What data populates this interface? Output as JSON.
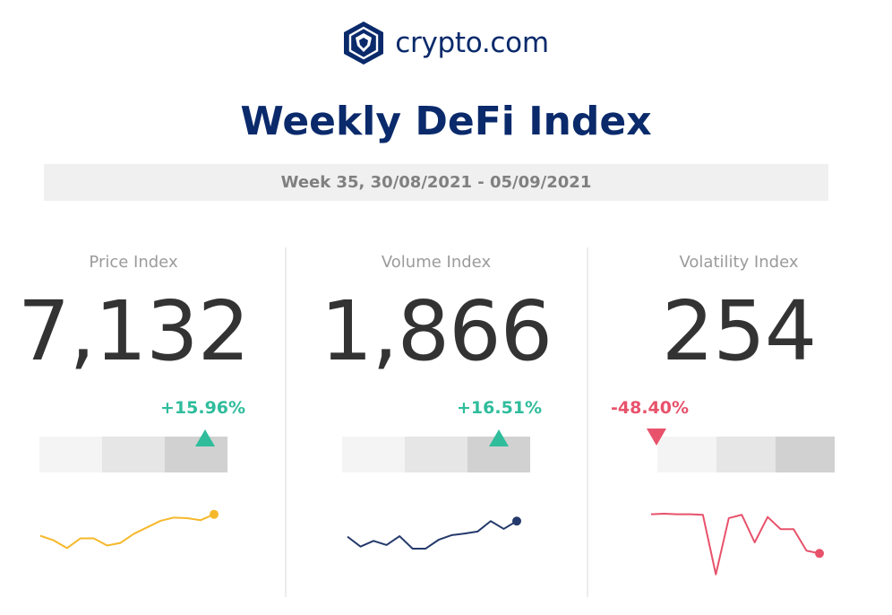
{
  "brand": {
    "name": "crypto.com",
    "logo_icon": "crypto-lion-shield-icon"
  },
  "title": "Weekly DeFi Index",
  "week": "Week 35, 30/08/2021 - 05/09/2021",
  "colors": {
    "navy": "#0a2a6b",
    "positive": "#2fbd9c",
    "negative": "#e8526b",
    "price_line": "#f6b82b",
    "volume_line": "#24396b",
    "volatility_line": "#e8526b"
  },
  "metrics": [
    {
      "id": "price",
      "label": "Price Index",
      "value": "7,132",
      "change": "+15.96%",
      "direction": "up",
      "level": "high",
      "sparkline": [
        55,
        48,
        36,
        51,
        51,
        40,
        44,
        58,
        68,
        78,
        83,
        82,
        79,
        88
      ]
    },
    {
      "id": "volume",
      "label": "Volume Index",
      "value": "1,866",
      "change": "+16.51%",
      "direction": "up",
      "level": "high",
      "sparkline": [
        42,
        23,
        34,
        26,
        43,
        19,
        19,
        36,
        45,
        48,
        52,
        72,
        57,
        72
      ]
    },
    {
      "id": "volatility",
      "label": "Volatility Index",
      "value": "254",
      "change": "-48.40%",
      "direction": "down",
      "level": "low",
      "sparkline": [
        86,
        87,
        86,
        86,
        85,
        -23,
        79,
        85,
        35,
        81,
        59,
        59,
        20,
        15
      ]
    }
  ]
}
